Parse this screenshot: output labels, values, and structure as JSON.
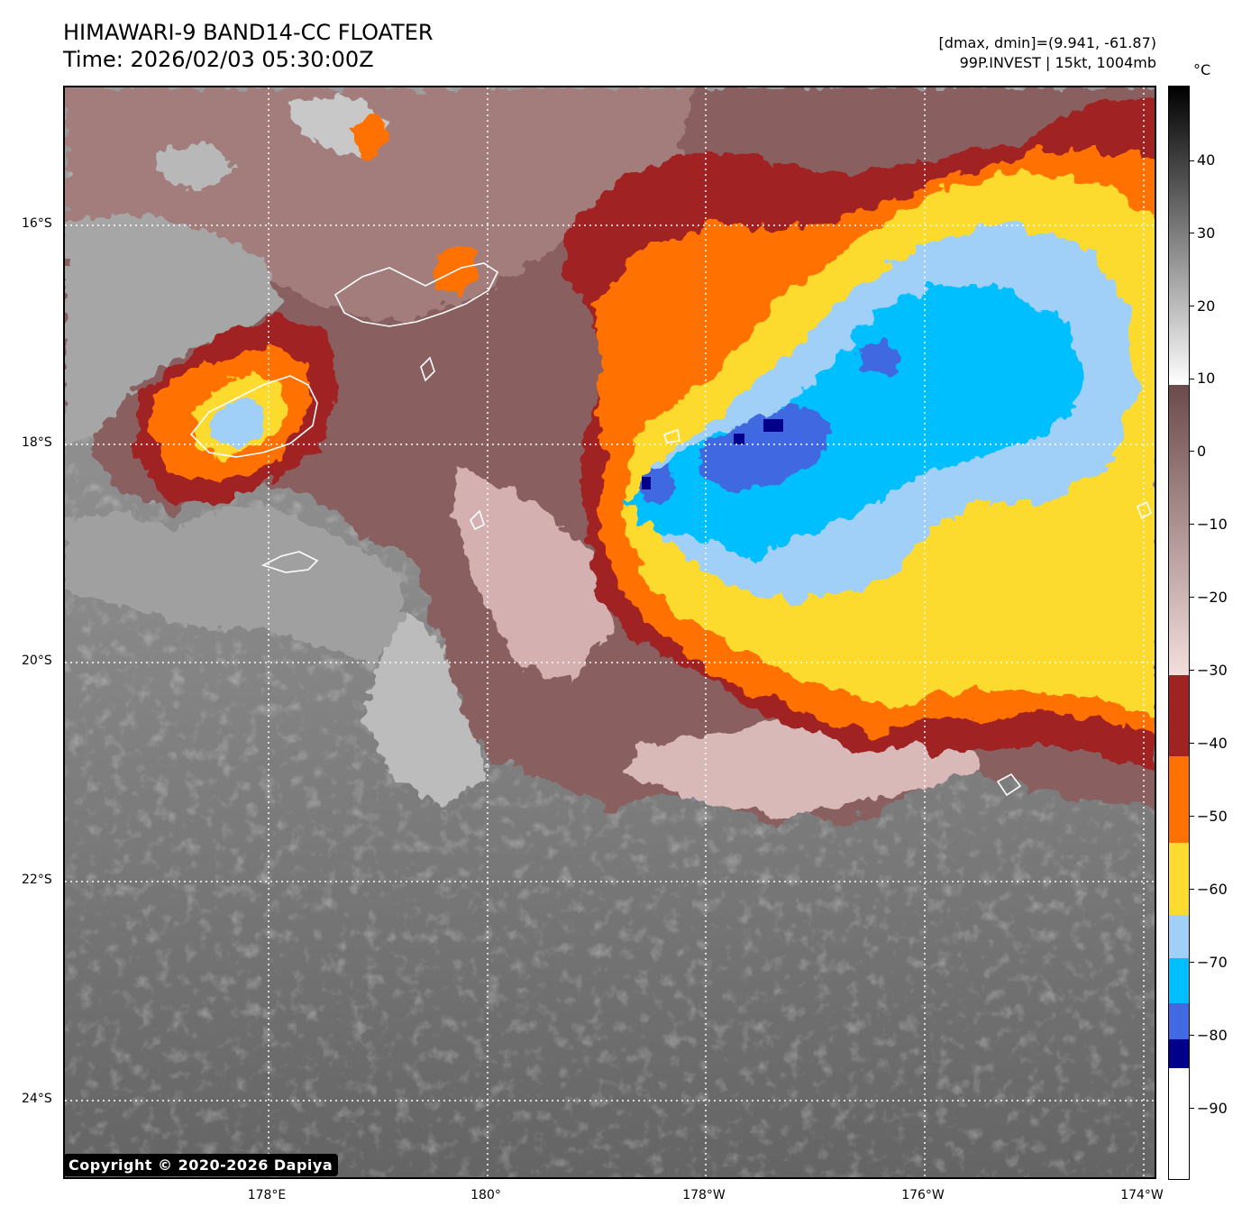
{
  "title": {
    "line1": "HIMAWARI-9 BAND14-CC FLOATER",
    "line2": "Time: 2026/02/03 05:30:00Z"
  },
  "info": {
    "line1": "[dmax, dmin]=(9.941, -61.87)",
    "line2": "99P.INVEST | 15kt, 1004mb"
  },
  "colorbar": {
    "unit": "°C",
    "ticks": [
      "40",
      "30",
      "20",
      "10",
      "0",
      "−10",
      "−20",
      "−30",
      "−40",
      "−50",
      "−60",
      "−70",
      "−80",
      "−90"
    ],
    "range": [
      -100,
      50
    ],
    "bands": [
      {
        "from": -100,
        "to": -84,
        "color": "#ffffff"
      },
      {
        "from": -84,
        "to": -80,
        "color": "#00008b"
      },
      {
        "from": -80,
        "to": -76,
        "color": "#4169e1"
      },
      {
        "from": -76,
        "to": -70,
        "color": "#00bfff"
      },
      {
        "from": -70,
        "to": -64,
        "color": "#a0cff7"
      },
      {
        "from": -64,
        "to": -57,
        "color": "#fddb2f"
      },
      {
        "from": -57,
        "to": -45,
        "color": "#ff7100"
      },
      {
        "from": -45,
        "to": -34,
        "color": "#a02323"
      },
      {
        "from": -34,
        "to": 8,
        "color": "gradient-brown-pink"
      },
      {
        "from": 8,
        "to": 50,
        "color": "gradient-white-black"
      }
    ]
  },
  "map": {
    "lat_labels": [
      "16°S",
      "18°S",
      "20°S",
      "22°S",
      "24°S"
    ],
    "lon_labels": [
      "178°E",
      "180°",
      "178°W",
      "176°W",
      "174°W"
    ],
    "colors": {
      "background_gray": "#6b6b6b",
      "cloud_brown": "#8a5e5e",
      "cloud_pink": "#d9b8b8",
      "dark_red": "#a02323",
      "orange": "#ff7100",
      "yellow": "#fddb2f",
      "light_blue": "#a0cff7",
      "cyan": "#00bfff",
      "royal_blue": "#4169e1",
      "navy": "#00008b"
    }
  },
  "copyright": "Copyright © 2020-2026 Dapiya"
}
